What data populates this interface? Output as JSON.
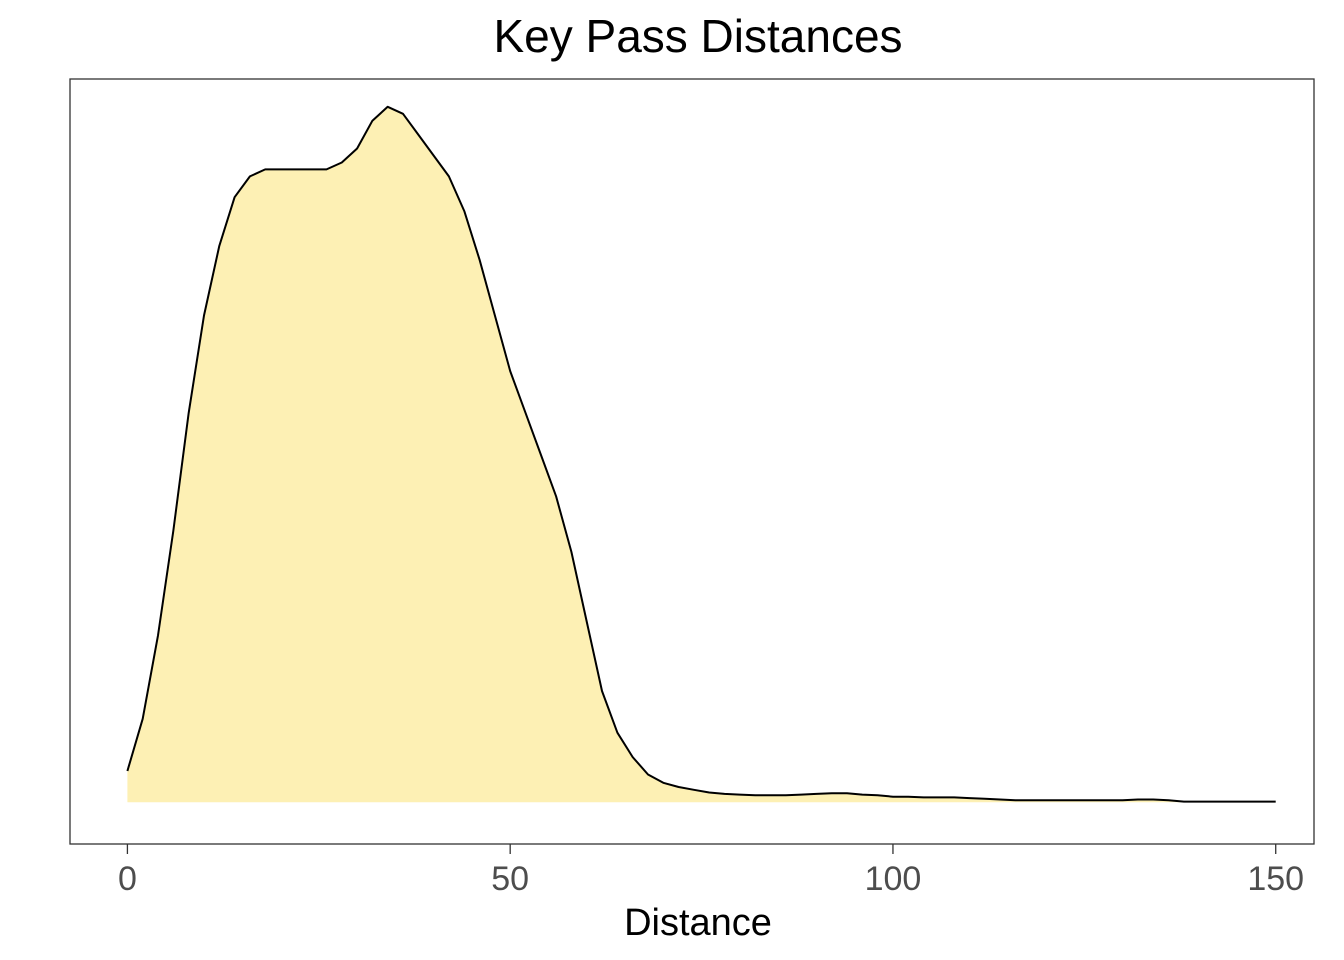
{
  "chart_data": {
    "type": "area",
    "title": "Key Pass Distances",
    "xlabel": "Distance",
    "ylabel": "",
    "xlim": [
      -7.5,
      155
    ],
    "ylim": [
      -0.06,
      1.04
    ],
    "x_ticks": [
      0,
      50,
      100,
      150
    ],
    "x_tick_labels": [
      "0",
      "50",
      "100",
      "150"
    ],
    "y_ticks": [],
    "grid": false,
    "legend": "none",
    "series": [
      {
        "x": [
          0,
          2,
          4,
          6,
          8,
          10,
          12,
          14,
          16,
          18,
          20,
          22,
          24,
          26,
          28,
          30,
          32,
          34,
          36,
          38,
          40,
          42,
          44,
          46,
          48,
          50,
          52,
          54,
          56,
          58,
          60,
          62,
          64,
          66,
          68,
          70,
          72,
          74,
          76,
          78,
          80,
          82,
          84,
          86,
          88,
          90,
          92,
          94,
          96,
          98,
          100,
          102,
          104,
          106,
          108,
          110,
          112,
          114,
          116,
          118,
          120,
          122,
          124,
          126,
          128,
          130,
          132,
          134,
          136,
          138,
          140,
          142,
          144,
          146,
          148,
          150
        ],
        "y": [
          0.045,
          0.12,
          0.24,
          0.39,
          0.56,
          0.7,
          0.8,
          0.87,
          0.9,
          0.91,
          0.91,
          0.91,
          0.91,
          0.91,
          0.92,
          0.94,
          0.98,
          1.0,
          0.99,
          0.96,
          0.93,
          0.9,
          0.85,
          0.78,
          0.7,
          0.62,
          0.56,
          0.5,
          0.44,
          0.36,
          0.26,
          0.16,
          0.1,
          0.065,
          0.04,
          0.028,
          0.022,
          0.018,
          0.014,
          0.012,
          0.011,
          0.01,
          0.01,
          0.01,
          0.011,
          0.012,
          0.013,
          0.013,
          0.011,
          0.01,
          0.008,
          0.008,
          0.007,
          0.007,
          0.007,
          0.006,
          0.005,
          0.004,
          0.003,
          0.003,
          0.003,
          0.003,
          0.003,
          0.003,
          0.003,
          0.003,
          0.004,
          0.004,
          0.003,
          0.001,
          0.001,
          0.001,
          0.001,
          0.001,
          0.001,
          0.001
        ]
      }
    ],
    "colors": {
      "fill": "#fdf0b4",
      "line": "#000000",
      "panel_border": "#333333",
      "tick_text": "#4d4d4d"
    }
  }
}
